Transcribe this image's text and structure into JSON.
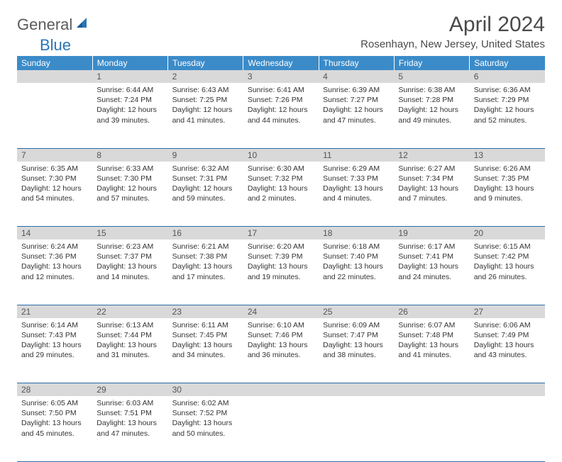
{
  "logo": {
    "general": "General",
    "blue": "Blue"
  },
  "title": "April 2024",
  "location": "Rosenhayn, New Jersey, United States",
  "headers": [
    "Sunday",
    "Monday",
    "Tuesday",
    "Wednesday",
    "Thursday",
    "Friday",
    "Saturday"
  ],
  "colors": {
    "header_bg": "#3b8bc9",
    "daynum_bg": "#d9d9d9",
    "rule": "#2a6ca8",
    "logo_blue": "#2a76b8"
  },
  "weeks": [
    {
      "nums": [
        "",
        "1",
        "2",
        "3",
        "4",
        "5",
        "6"
      ],
      "cells": [
        "",
        "Sunrise: 6:44 AM\nSunset: 7:24 PM\nDaylight: 12 hours and 39 minutes.",
        "Sunrise: 6:43 AM\nSunset: 7:25 PM\nDaylight: 12 hours and 41 minutes.",
        "Sunrise: 6:41 AM\nSunset: 7:26 PM\nDaylight: 12 hours and 44 minutes.",
        "Sunrise: 6:39 AM\nSunset: 7:27 PM\nDaylight: 12 hours and 47 minutes.",
        "Sunrise: 6:38 AM\nSunset: 7:28 PM\nDaylight: 12 hours and 49 minutes.",
        "Sunrise: 6:36 AM\nSunset: 7:29 PM\nDaylight: 12 hours and 52 minutes."
      ]
    },
    {
      "nums": [
        "7",
        "8",
        "9",
        "10",
        "11",
        "12",
        "13"
      ],
      "cells": [
        "Sunrise: 6:35 AM\nSunset: 7:30 PM\nDaylight: 12 hours and 54 minutes.",
        "Sunrise: 6:33 AM\nSunset: 7:30 PM\nDaylight: 12 hours and 57 minutes.",
        "Sunrise: 6:32 AM\nSunset: 7:31 PM\nDaylight: 12 hours and 59 minutes.",
        "Sunrise: 6:30 AM\nSunset: 7:32 PM\nDaylight: 13 hours and 2 minutes.",
        "Sunrise: 6:29 AM\nSunset: 7:33 PM\nDaylight: 13 hours and 4 minutes.",
        "Sunrise: 6:27 AM\nSunset: 7:34 PM\nDaylight: 13 hours and 7 minutes.",
        "Sunrise: 6:26 AM\nSunset: 7:35 PM\nDaylight: 13 hours and 9 minutes."
      ]
    },
    {
      "nums": [
        "14",
        "15",
        "16",
        "17",
        "18",
        "19",
        "20"
      ],
      "cells": [
        "Sunrise: 6:24 AM\nSunset: 7:36 PM\nDaylight: 13 hours and 12 minutes.",
        "Sunrise: 6:23 AM\nSunset: 7:37 PM\nDaylight: 13 hours and 14 minutes.",
        "Sunrise: 6:21 AM\nSunset: 7:38 PM\nDaylight: 13 hours and 17 minutes.",
        "Sunrise: 6:20 AM\nSunset: 7:39 PM\nDaylight: 13 hours and 19 minutes.",
        "Sunrise: 6:18 AM\nSunset: 7:40 PM\nDaylight: 13 hours and 22 minutes.",
        "Sunrise: 6:17 AM\nSunset: 7:41 PM\nDaylight: 13 hours and 24 minutes.",
        "Sunrise: 6:15 AM\nSunset: 7:42 PM\nDaylight: 13 hours and 26 minutes."
      ]
    },
    {
      "nums": [
        "21",
        "22",
        "23",
        "24",
        "25",
        "26",
        "27"
      ],
      "cells": [
        "Sunrise: 6:14 AM\nSunset: 7:43 PM\nDaylight: 13 hours and 29 minutes.",
        "Sunrise: 6:13 AM\nSunset: 7:44 PM\nDaylight: 13 hours and 31 minutes.",
        "Sunrise: 6:11 AM\nSunset: 7:45 PM\nDaylight: 13 hours and 34 minutes.",
        "Sunrise: 6:10 AM\nSunset: 7:46 PM\nDaylight: 13 hours and 36 minutes.",
        "Sunrise: 6:09 AM\nSunset: 7:47 PM\nDaylight: 13 hours and 38 minutes.",
        "Sunrise: 6:07 AM\nSunset: 7:48 PM\nDaylight: 13 hours and 41 minutes.",
        "Sunrise: 6:06 AM\nSunset: 7:49 PM\nDaylight: 13 hours and 43 minutes."
      ]
    },
    {
      "nums": [
        "28",
        "29",
        "30",
        "",
        "",
        "",
        ""
      ],
      "cells": [
        "Sunrise: 6:05 AM\nSunset: 7:50 PM\nDaylight: 13 hours and 45 minutes.",
        "Sunrise: 6:03 AM\nSunset: 7:51 PM\nDaylight: 13 hours and 47 minutes.",
        "Sunrise: 6:02 AM\nSunset: 7:52 PM\nDaylight: 13 hours and 50 minutes.",
        "",
        "",
        "",
        ""
      ]
    }
  ]
}
